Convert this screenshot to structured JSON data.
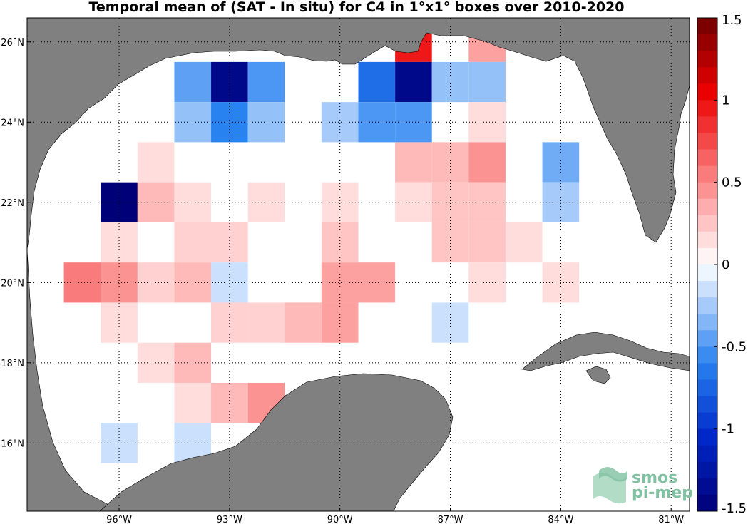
{
  "chart_data": {
    "type": "heatmap",
    "title": "Temporal mean of (SAT - In situ) for C4 in 1°x1° boxes over 2010-2020",
    "xlim": [
      -98.5,
      -80.5
    ],
    "ylim": [
      14.3,
      26.6
    ],
    "x_ticks": [
      {
        "value": -96,
        "label": "96°W"
      },
      {
        "value": -93,
        "label": "93°W"
      },
      {
        "value": -90,
        "label": "90°W"
      },
      {
        "value": -87,
        "label": "87°W"
      },
      {
        "value": -84,
        "label": "84°W"
      },
      {
        "value": -81,
        "label": "81°W"
      }
    ],
    "y_ticks": [
      {
        "value": 16,
        "label": "16°N"
      },
      {
        "value": 18,
        "label": "18°N"
      },
      {
        "value": 20,
        "label": "20°N"
      },
      {
        "value": 22,
        "label": "22°N"
      },
      {
        "value": 24,
        "label": "24°N"
      },
      {
        "value": 26,
        "label": "26°N"
      }
    ],
    "grid": true,
    "colorbar": {
      "min": -1.5,
      "max": 1.5,
      "ticks": [
        {
          "value": 1.5,
          "label": "1.5"
        },
        {
          "value": 1,
          "label": "1"
        },
        {
          "value": 0.5,
          "label": "0.5"
        },
        {
          "value": 0,
          "label": "0"
        },
        {
          "value": -0.5,
          "label": "-0.5"
        },
        {
          "value": -1,
          "label": "-1"
        },
        {
          "value": -1.5,
          "label": "-1.5"
        }
      ]
    },
    "cell_size_deg": 1,
    "cells": [
      {
        "lon": -88,
        "lat": 26,
        "value": 0.95
      },
      {
        "lon": -86,
        "lat": 26,
        "value": 0.4
      },
      {
        "lon": -94,
        "lat": 25,
        "value": -0.45
      },
      {
        "lon": -93,
        "lat": 25,
        "value": -1.4
      },
      {
        "lon": -92,
        "lat": 25,
        "value": -0.5
      },
      {
        "lon": -89,
        "lat": 25,
        "value": -0.7
      },
      {
        "lon": -88,
        "lat": 25,
        "value": -1.4
      },
      {
        "lon": -87,
        "lat": 25,
        "value": -0.3
      },
      {
        "lon": -86,
        "lat": 25,
        "value": -0.3
      },
      {
        "lon": -94,
        "lat": 24,
        "value": -0.3
      },
      {
        "lon": -93,
        "lat": 24,
        "value": -0.6
      },
      {
        "lon": -92,
        "lat": 24,
        "value": -0.3
      },
      {
        "lon": -90,
        "lat": 24,
        "value": -0.25
      },
      {
        "lon": -89,
        "lat": 24,
        "value": -0.5
      },
      {
        "lon": -88,
        "lat": 24,
        "value": -0.5
      },
      {
        "lon": -86,
        "lat": 24,
        "value": 0.15
      },
      {
        "lon": -95,
        "lat": 23,
        "value": 0.15
      },
      {
        "lon": -88,
        "lat": 23,
        "value": 0.3
      },
      {
        "lon": -87,
        "lat": 23,
        "value": 0.3
      },
      {
        "lon": -86,
        "lat": 23,
        "value": 0.45
      },
      {
        "lon": -84,
        "lat": 23,
        "value": -0.4
      },
      {
        "lon": -96,
        "lat": 22,
        "value": -1.5
      },
      {
        "lon": -95,
        "lat": 22,
        "value": 0.3
      },
      {
        "lon": -94,
        "lat": 22,
        "value": 0.15
      },
      {
        "lon": -92,
        "lat": 22,
        "value": 0.15
      },
      {
        "lon": -90,
        "lat": 22,
        "value": 0.15
      },
      {
        "lon": -88,
        "lat": 22,
        "value": 0.15
      },
      {
        "lon": -87,
        "lat": 22,
        "value": 0.25
      },
      {
        "lon": -86,
        "lat": 22,
        "value": 0.25
      },
      {
        "lon": -84,
        "lat": 22,
        "value": -0.25
      },
      {
        "lon": -96,
        "lat": 21,
        "value": 0.15
      },
      {
        "lon": -94,
        "lat": 21,
        "value": 0.2
      },
      {
        "lon": -93,
        "lat": 21,
        "value": 0.2
      },
      {
        "lon": -90,
        "lat": 21,
        "value": 0.25
      },
      {
        "lon": -87,
        "lat": 21,
        "value": 0.25
      },
      {
        "lon": -86,
        "lat": 21,
        "value": 0.25
      },
      {
        "lon": -85,
        "lat": 21,
        "value": 0.15
      },
      {
        "lon": -97,
        "lat": 20,
        "value": 0.55
      },
      {
        "lon": -96,
        "lat": 20,
        "value": 0.45
      },
      {
        "lon": -95,
        "lat": 20,
        "value": 0.2
      },
      {
        "lon": -94,
        "lat": 20,
        "value": 0.3
      },
      {
        "lon": -93,
        "lat": 20,
        "value": -0.15
      },
      {
        "lon": -90,
        "lat": 20,
        "value": 0.4
      },
      {
        "lon": -89,
        "lat": 20,
        "value": 0.4
      },
      {
        "lon": -86,
        "lat": 20,
        "value": 0.15
      },
      {
        "lon": -84,
        "lat": 20,
        "value": 0.15
      },
      {
        "lon": -96,
        "lat": 19,
        "value": 0.15
      },
      {
        "lon": -93,
        "lat": 19,
        "value": 0.2
      },
      {
        "lon": -92,
        "lat": 19,
        "value": 0.2
      },
      {
        "lon": -91,
        "lat": 19,
        "value": 0.3
      },
      {
        "lon": -90,
        "lat": 19,
        "value": 0.4
      },
      {
        "lon": -87,
        "lat": 19,
        "value": -0.15
      },
      {
        "lon": -95,
        "lat": 18,
        "value": 0.15
      },
      {
        "lon": -94,
        "lat": 18,
        "value": 0.3
      },
      {
        "lon": -94,
        "lat": 17,
        "value": 0.15
      },
      {
        "lon": -93,
        "lat": 17,
        "value": 0.3
      },
      {
        "lon": -92,
        "lat": 17,
        "value": 0.45
      },
      {
        "lon": -96,
        "lat": 16,
        "value": -0.15
      },
      {
        "lon": -94,
        "lat": 16,
        "value": -0.15
      }
    ]
  },
  "colors": {
    "land": "#808080",
    "ocean": "#ffffff",
    "gridline": "#000000",
    "logo": "#7fc1a1"
  },
  "logo": {
    "line1": "smos",
    "line2": "pi-mep"
  }
}
